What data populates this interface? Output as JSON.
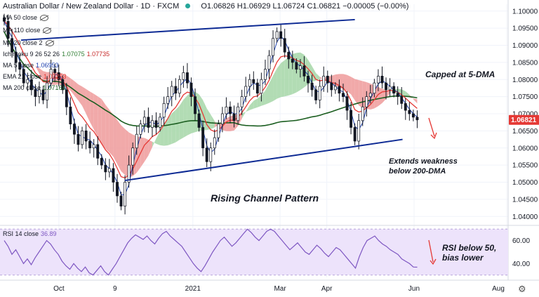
{
  "header": {
    "title": "Australian Dollar / New Zealand Dollar · 1D · FXCM",
    "ohlc": "O1.06826 H1.06929 L1.06724 C1.06821 −0.00005 (−0.00%)"
  },
  "indicators": [
    {
      "label": "MA 50 close",
      "value": "",
      "color": "#131722",
      "hidden": true
    },
    {
      "label": "MA 110 close",
      "value": "",
      "color": "#131722",
      "hidden": true
    },
    {
      "label": "MA 20 close 2",
      "value": "",
      "color": "#131722",
      "hidden": true
    },
    {
      "label": "Ichimoku 9 26 52 26",
      "value": "1.07075",
      "value2": "1.07735",
      "color": "#2e7d32",
      "color2": "#c62828"
    },
    {
      "label": "MA 5 close",
      "value": "1.06953",
      "color": "#1e40af"
    },
    {
      "label": "EMA 21 close",
      "value": "1.07253",
      "color": "#e53935"
    },
    {
      "label": "MA 200 close",
      "value": "1.07164",
      "color": "#1b5e20"
    }
  ],
  "annotations": {
    "capped": "Capped at 5-DMA",
    "extends_1": "Extends weakness",
    "extends_2": "below 200-DMA",
    "pattern": "Rising Channel Pattern",
    "rsi_1": "RSI below 50,",
    "rsi_2": "bias lower"
  },
  "rsi_label": {
    "label": "RSI 14 close",
    "value": "36.89"
  },
  "colors": {
    "channel": "#0d2a94",
    "ema21": "#e53935",
    "ma5": "#1e40af",
    "ma200": "#1b5e20",
    "cloud_bull": "#a5d6a7",
    "cloud_bear": "#ef9a9a",
    "candle": "#131722",
    "rsi": "#7e57c2",
    "rsi_band": "#ede3fb",
    "price_tag": "#e53935",
    "arrow": "#e53935"
  },
  "chart_data": [
    {
      "type": "candlestick",
      "title": "Australian Dollar / New Zealand Dollar · 1D · FXCM",
      "x_ticks": [
        "Oct",
        "9",
        "2021",
        "Mar",
        "Apr",
        "Jun",
        "Aug"
      ],
      "y_ticks": [
        1.04,
        1.045,
        1.05,
        1.055,
        1.06,
        1.065,
        1.07,
        1.075,
        1.08,
        1.085,
        1.09,
        1.095,
        1.1
      ],
      "ylim": [
        1.038,
        1.102
      ],
      "last_price": "1.06821",
      "close_series": [
        1.097,
        1.092,
        1.088,
        1.085,
        1.083,
        1.079,
        1.08,
        1.077,
        1.075,
        1.077,
        1.074,
        1.079,
        1.083,
        1.082,
        1.08,
        1.077,
        1.072,
        1.067,
        1.064,
        1.061,
        1.065,
        1.062,
        1.06,
        1.061,
        1.057,
        1.055,
        1.053,
        1.054,
        1.05,
        1.046,
        1.043,
        1.05,
        1.055,
        1.06,
        1.064,
        1.067,
        1.069,
        1.066,
        1.068,
        1.066,
        1.069,
        1.073,
        1.075,
        1.078,
        1.076,
        1.08,
        1.082,
        1.079,
        1.075,
        1.07,
        1.066,
        1.06,
        1.056,
        1.06,
        1.063,
        1.067,
        1.07,
        1.072,
        1.07,
        1.068,
        1.072,
        1.075,
        1.078,
        1.08,
        1.079,
        1.076,
        1.08,
        1.083,
        1.087,
        1.092,
        1.094,
        1.092,
        1.088,
        1.086,
        1.085,
        1.083,
        1.084,
        1.081,
        1.079,
        1.077,
        1.074,
        1.078,
        1.081,
        1.079,
        1.077,
        1.078,
        1.076,
        1.075,
        1.071,
        1.066,
        1.062,
        1.068,
        1.072,
        1.075,
        1.076,
        1.079,
        1.081,
        1.079,
        1.077,
        1.078,
        1.076,
        1.075,
        1.073,
        1.071,
        1.07,
        1.069,
        1.0682
      ],
      "channel_upper": {
        "x_index": [
          6,
          125
        ],
        "y": [
          1.0915,
          1.0975
        ]
      },
      "channel_lower": {
        "x_index": [
          43,
          142
        ],
        "y": [
          1.0505,
          1.0625
        ]
      },
      "series": [
        {
          "name": "MA 5 close",
          "last": 1.06953
        },
        {
          "name": "EMA 21 close",
          "last": 1.07253
        },
        {
          "name": "MA 200 close",
          "last": 1.07164
        }
      ]
    },
    {
      "type": "line",
      "title": "RSI 14 close",
      "y_ticks": [
        40,
        60
      ],
      "ylim": [
        28,
        72
      ],
      "band": [
        30,
        70
      ],
      "last_value": 36.89,
      "values": [
        60,
        55,
        48,
        52,
        46,
        40,
        44,
        39,
        45,
        50,
        55,
        60,
        57,
        52,
        48,
        42,
        38,
        35,
        40,
        36,
        33,
        37,
        32,
        30,
        34,
        38,
        33,
        30,
        35,
        40,
        46,
        52,
        58,
        62,
        65,
        63,
        61,
        64,
        60,
        57,
        62,
        66,
        68,
        64,
        61,
        58,
        55,
        50,
        45,
        40,
        36,
        33,
        38,
        44,
        50,
        55,
        60,
        63,
        59,
        55,
        58,
        62,
        66,
        70,
        67,
        63,
        60,
        64,
        68,
        70,
        68,
        64,
        60,
        56,
        52,
        55,
        58,
        54,
        50,
        48,
        52,
        56,
        53,
        49,
        46,
        50,
        54,
        52,
        48,
        44,
        40,
        36,
        46,
        54,
        60,
        62,
        64,
        60,
        57,
        55,
        52,
        50,
        48,
        44,
        42,
        40,
        37,
        36.89
      ]
    }
  ]
}
